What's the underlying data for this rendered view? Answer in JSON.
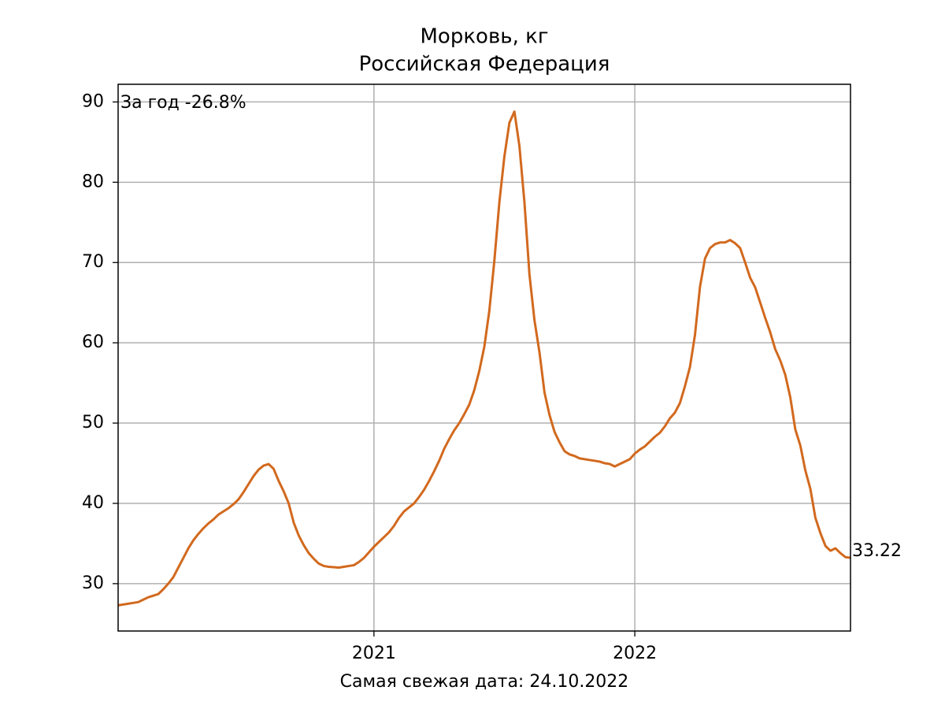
{
  "chart_data": {
    "type": "line",
    "title": "Морковь, кг",
    "subtitle": "Российская Федерация",
    "annotation": "За год -26.8%",
    "footer": "Самая свежая дата: 24.10.2022",
    "categories": [
      null,
      null,
      null,
      null,
      null,
      null,
      null,
      null,
      null,
      null,
      null,
      null,
      null,
      null,
      null,
      null,
      null,
      null,
      null,
      null,
      null,
      null,
      null,
      null,
      null,
      null,
      null,
      null,
      null,
      null,
      null,
      null,
      null,
      null,
      null,
      null,
      null,
      null,
      null,
      null,
      null,
      null,
      null,
      null,
      null,
      null,
      null,
      null,
      null,
      null,
      null,
      "2021",
      null,
      null,
      null,
      null,
      null,
      null,
      null,
      null,
      null,
      null,
      null,
      null,
      null,
      null,
      null,
      null,
      null,
      null,
      null,
      null,
      null,
      null,
      null,
      null,
      null,
      null,
      null,
      null,
      null,
      null,
      null,
      null,
      null,
      null,
      null,
      null,
      null,
      null,
      null,
      null,
      null,
      null,
      null,
      null,
      null,
      null,
      null,
      null,
      null,
      null,
      null,
      "2022",
      null,
      null,
      null,
      null,
      null,
      null,
      null,
      null,
      null,
      null,
      null,
      null,
      null,
      null,
      null,
      null,
      null,
      null,
      null,
      null,
      null,
      null,
      null,
      null,
      null,
      null,
      null,
      null,
      null,
      null,
      null,
      null,
      null,
      null,
      null,
      null,
      null,
      null,
      null,
      null,
      null,
      null,
      null
    ],
    "values": [
      27.3,
      27.4,
      27.5,
      27.6,
      27.7,
      28.0,
      28.3,
      28.5,
      28.7,
      29.3,
      30.0,
      30.8,
      32.0,
      33.2,
      34.4,
      35.4,
      36.2,
      36.9,
      37.5,
      38.0,
      38.6,
      39.0,
      39.4,
      39.9,
      40.5,
      41.4,
      42.4,
      43.4,
      44.2,
      44.7,
      44.9,
      44.3,
      42.8,
      41.5,
      40.0,
      37.6,
      36.0,
      34.8,
      33.8,
      33.1,
      32.5,
      32.2,
      32.1,
      32.05,
      32.0,
      32.1,
      32.2,
      32.3,
      32.7,
      33.2,
      33.9,
      34.6,
      35.2,
      35.8,
      36.4,
      37.2,
      38.2,
      39.0,
      39.5,
      40.0,
      40.8,
      41.7,
      42.8,
      44.0,
      45.3,
      46.8,
      48.0,
      49.1,
      50.0,
      51.1,
      52.3,
      54.1,
      56.5,
      59.5,
      64.0,
      70.2,
      77.5,
      83.2,
      87.4,
      88.8,
      84.5,
      77.5,
      68.5,
      62.8,
      58.8,
      53.8,
      51.0,
      48.9,
      47.6,
      46.5,
      46.1,
      45.9,
      45.6,
      45.5,
      45.4,
      45.3,
      45.2,
      45.0,
      44.9,
      44.6,
      44.9,
      45.2,
      45.5,
      46.2,
      46.7,
      47.1,
      47.7,
      48.3,
      48.8,
      49.6,
      50.6,
      51.3,
      52.5,
      54.6,
      57.0,
      61.0,
      67.0,
      70.5,
      71.8,
      72.3,
      72.5,
      72.5,
      72.8,
      72.4,
      71.8,
      70.0,
      68.1,
      66.9,
      65.0,
      63.1,
      61.3,
      59.2,
      57.8,
      56.0,
      53.2,
      49.2,
      47.2,
      44.1,
      41.8,
      38.2,
      36.3,
      34.7,
      34.1,
      34.4,
      33.8,
      33.3,
      33.22
    ],
    "color": "#d2691e",
    "ylim": [
      24.1,
      92.2
    ],
    "yticks": [
      30,
      40,
      50,
      60,
      70,
      80,
      90
    ],
    "grid": true
  }
}
